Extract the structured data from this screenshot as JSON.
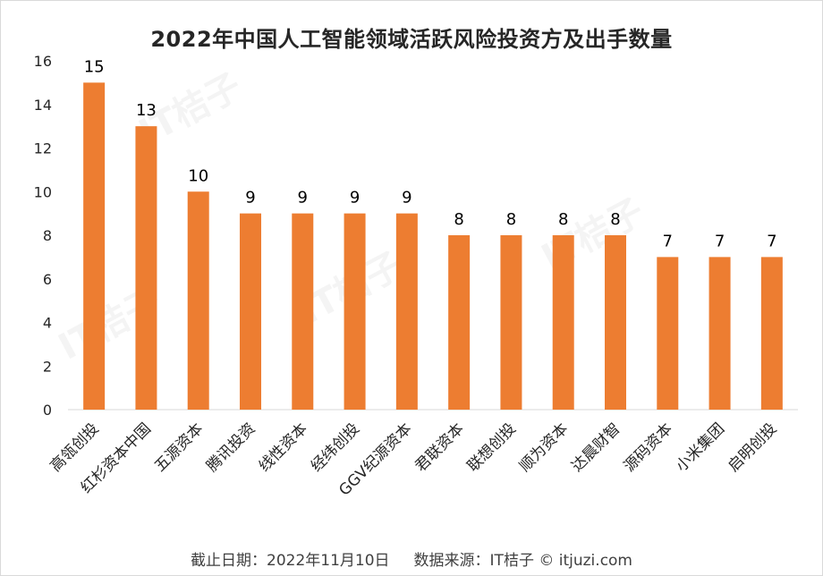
{
  "chart_data": {
    "type": "bar",
    "title": "2022年中国人工智能领域活跃风险投资方及出手数量",
    "categories": [
      "高瓴创投",
      "红杉资本中国",
      "五源资本",
      "腾讯投资",
      "线性资本",
      "经纬创投",
      "GGV纪源资本",
      "君联资本",
      "联想创投",
      "顺为资本",
      "达晨财智",
      "源码资本",
      "小米集团",
      "启明创投"
    ],
    "values": [
      15,
      13,
      10,
      9,
      9,
      9,
      9,
      8,
      8,
      8,
      8,
      7,
      7,
      7
    ],
    "ylim": [
      0,
      16
    ],
    "yticks": [
      0,
      2,
      4,
      6,
      8,
      10,
      12,
      14,
      16
    ],
    "xlabel": "",
    "ylabel": "",
    "grid": false,
    "bar_color": "#ED7D31"
  },
  "footer": "截止日期：2022年11月10日     数据来源：IT桔子 © itjuzi.com",
  "watermark": "IT桔子"
}
